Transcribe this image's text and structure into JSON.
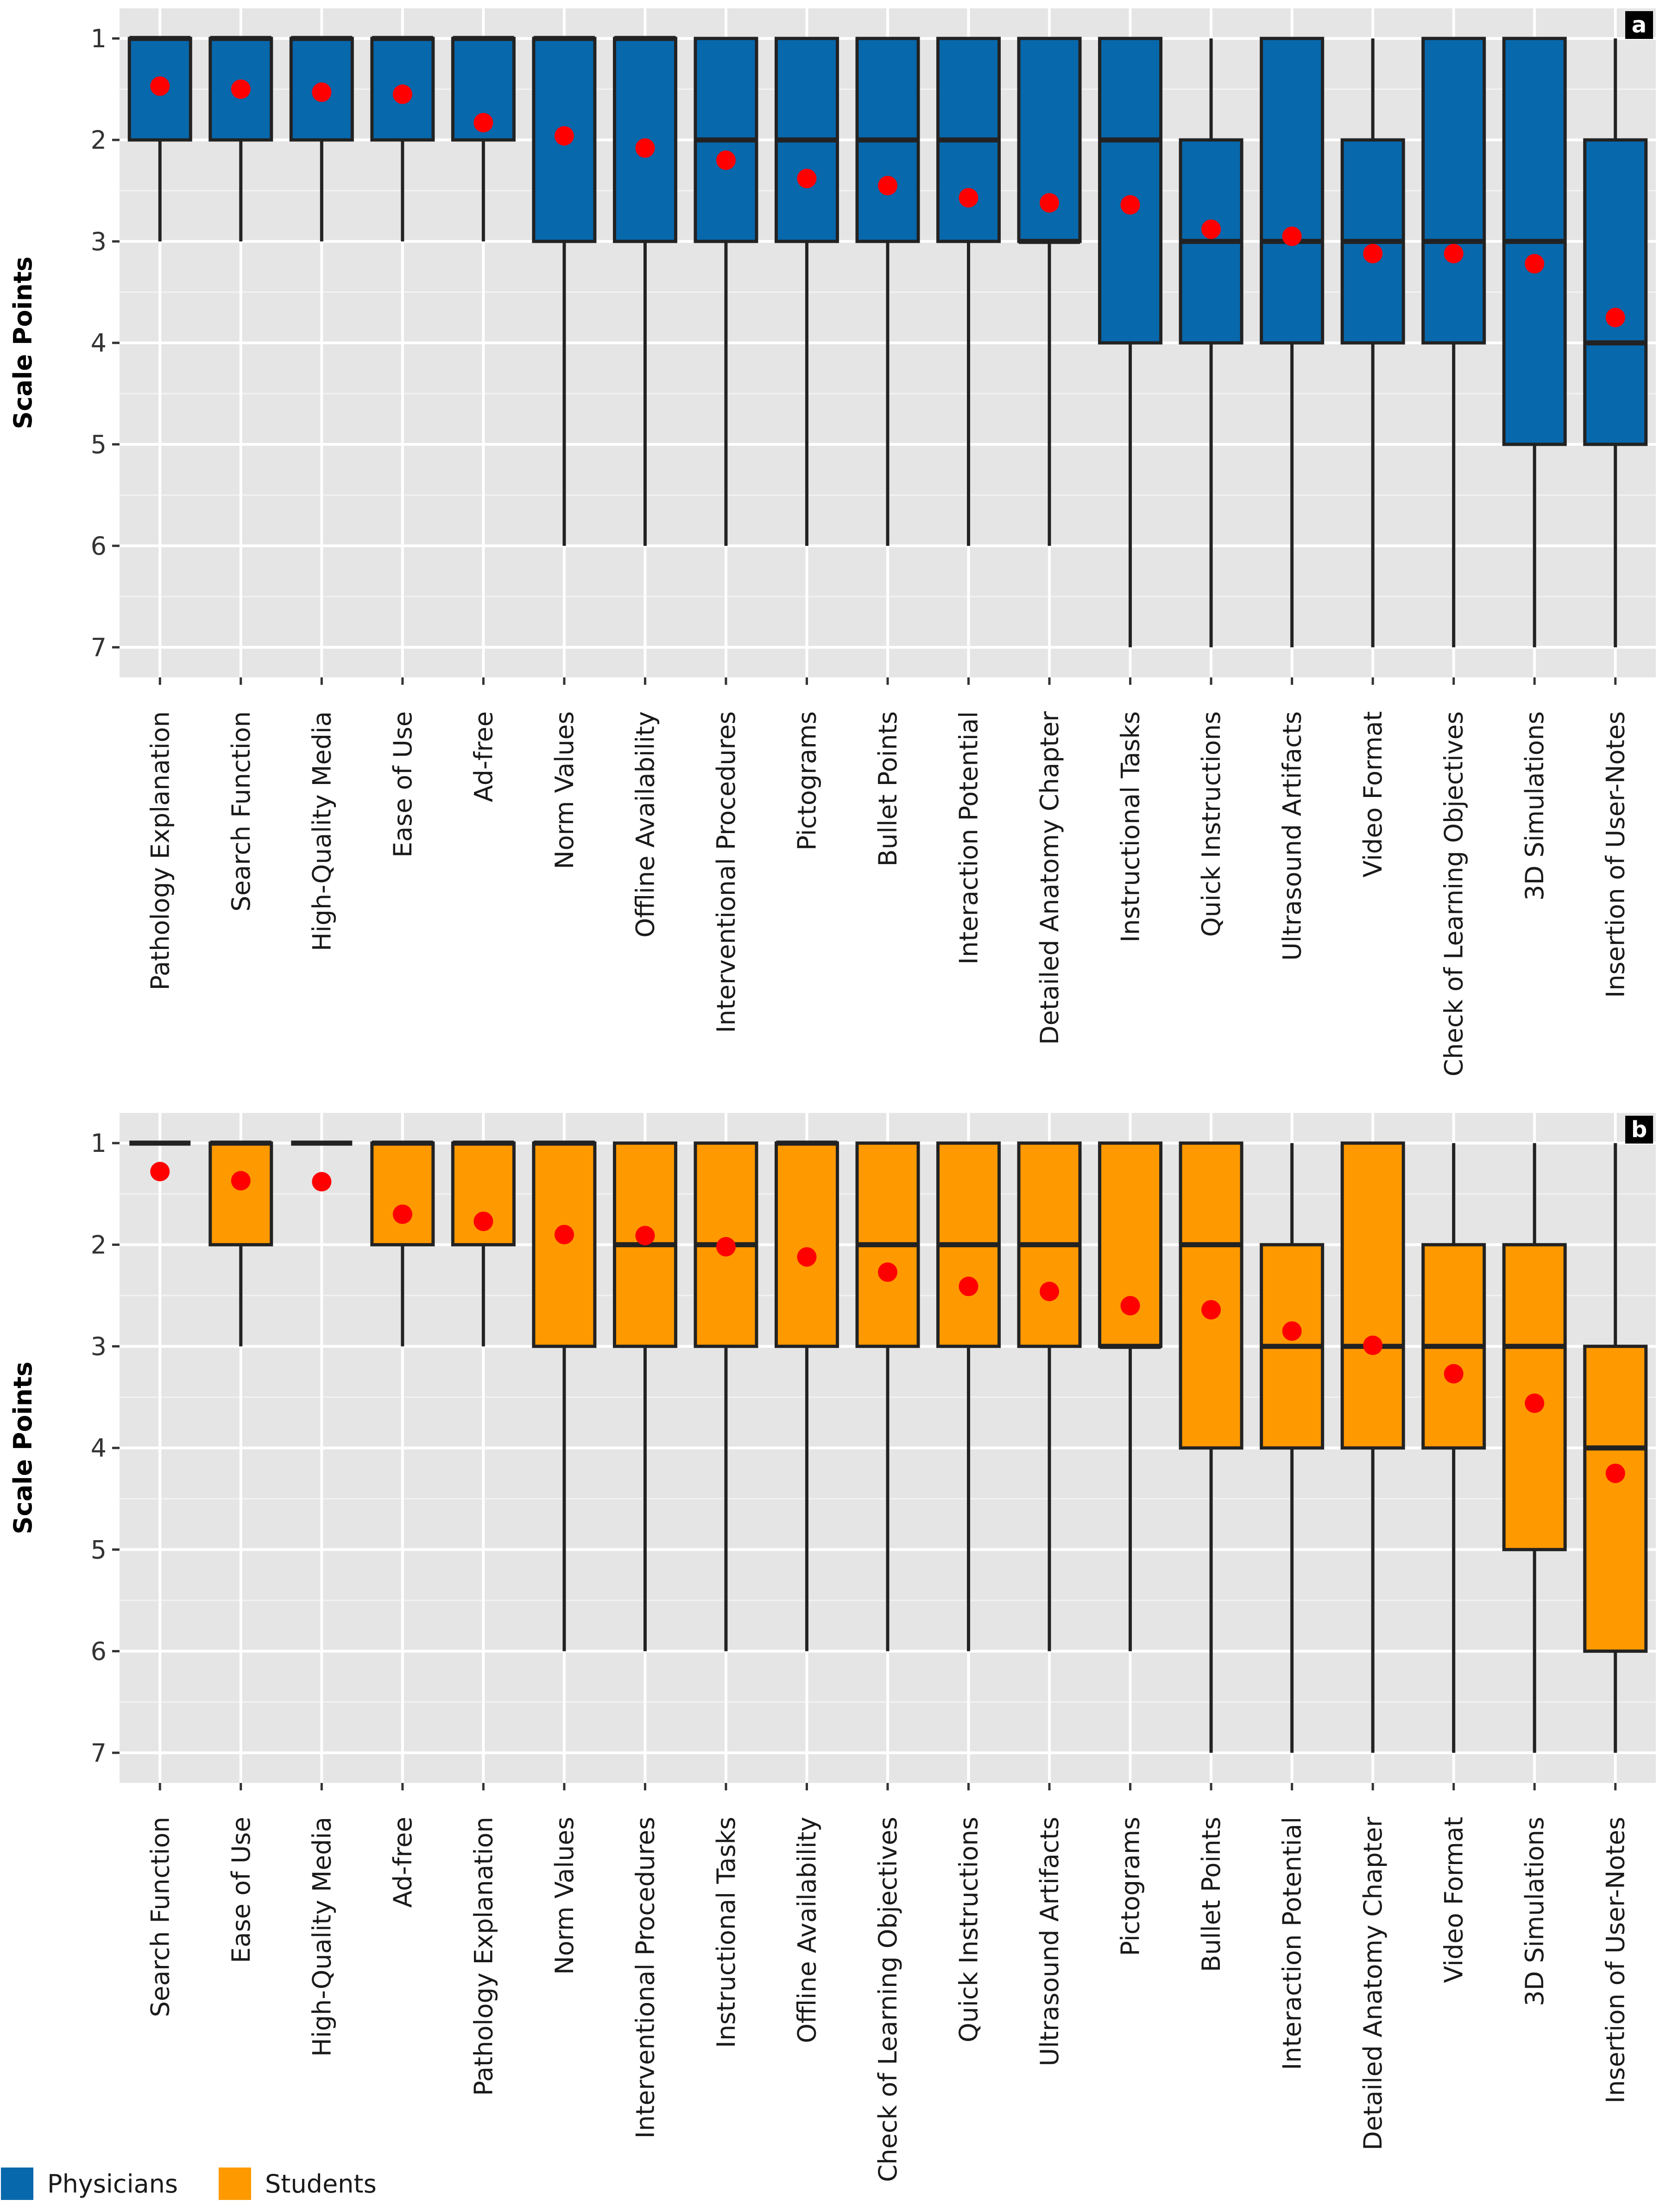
{
  "legend": [
    {
      "name": "Physicians",
      "color": "#0868ac"
    },
    {
      "name": "Students",
      "color": "#ff9900"
    }
  ],
  "chart_data": [
    {
      "type": "box",
      "tag": "a",
      "group": "Physicians",
      "ylabel": "Scale Points",
      "ylim": [
        1,
        7
      ],
      "y_reversed": true,
      "yticks": [
        1,
        2,
        3,
        4,
        5,
        6,
        7
      ],
      "color": "#0868ac",
      "categories": [
        "Pathology Explanation",
        "Search Function",
        "High-Quality Media",
        "Ease of Use",
        "Ad-free",
        "Norm Values",
        "Offline Availability",
        "Interventional Procedures",
        "Pictograms",
        "Bullet Points",
        "Interaction Potential",
        "Detailed Anatomy Chapter",
        "Instructional Tasks",
        "Quick Instructions",
        "Ultrasound Artifacts",
        "Video Format",
        "Check of Learning Objectives",
        "3D Simulations",
        "Insertion of User-Notes"
      ],
      "whisker_low": [
        1,
        1,
        1,
        1,
        1,
        1,
        1,
        1,
        1,
        1,
        1,
        1,
        1,
        1,
        1,
        1,
        1,
        1,
        1
      ],
      "q1": [
        1,
        1,
        1,
        1,
        1,
        1,
        1,
        1,
        1,
        1,
        1,
        1,
        1,
        2,
        1,
        2,
        1,
        1,
        2
      ],
      "median": [
        1,
        1,
        1,
        1,
        1,
        1,
        1,
        2,
        2,
        2,
        2,
        3,
        2,
        3,
        3,
        3,
        3,
        3,
        4
      ],
      "q3": [
        2,
        2,
        2,
        2,
        2,
        3,
        3,
        3,
        3,
        3,
        3,
        3,
        4,
        4,
        4,
        4,
        4,
        5,
        5
      ],
      "whisker_high": [
        3,
        3,
        3,
        3,
        3,
        6,
        6,
        6,
        6,
        6,
        6,
        6,
        7,
        7,
        7,
        7,
        7,
        7,
        7
      ],
      "mean": [
        1.47,
        1.5,
        1.53,
        1.55,
        1.83,
        1.96,
        2.08,
        2.2,
        2.38,
        2.45,
        2.57,
        2.62,
        2.64,
        2.88,
        2.95,
        3.12,
        3.12,
        3.22,
        3.75
      ]
    },
    {
      "type": "box",
      "tag": "b",
      "group": "Students",
      "ylabel": "Scale Points",
      "ylim": [
        1,
        7
      ],
      "y_reversed": true,
      "yticks": [
        1,
        2,
        3,
        4,
        5,
        6,
        7
      ],
      "color": "#ff9900",
      "categories": [
        "Search Function",
        "Ease of Use",
        "High-Quality Media",
        "Ad-free",
        "Pathology Explanation",
        "Norm Values",
        "Interventional Procedures",
        "Instructional Tasks",
        "Offline Availability",
        "Check of Learning Objectives",
        "Quick Instructions",
        "Ultrasound Artifacts",
        "Pictograms",
        "Bullet Points",
        "Interaction Potential",
        "Detailed Anatomy Chapter",
        "Video Format",
        "3D Simulations",
        "Insertion of User-Notes"
      ],
      "whisker_low": [
        1,
        1,
        1,
        1,
        1,
        1,
        1,
        1,
        1,
        1,
        1,
        1,
        1,
        1,
        1,
        1,
        1,
        1,
        1
      ],
      "q1": [
        1,
        1,
        1,
        1,
        1,
        1,
        1,
        1,
        1,
        1,
        1,
        1,
        1,
        1,
        2,
        1,
        2,
        2,
        3
      ],
      "median": [
        1,
        1,
        1,
        1,
        1,
        1,
        2,
        2,
        1,
        2,
        2,
        2,
        3,
        2,
        3,
        3,
        3,
        3,
        4
      ],
      "q3": [
        1,
        2,
        1,
        2,
        2,
        3,
        3,
        3,
        3,
        3,
        3,
        3,
        3,
        4,
        4,
        4,
        4,
        5,
        6
      ],
      "whisker_high": [
        1,
        3,
        1,
        3,
        3,
        6,
        6,
        6,
        6,
        6,
        6,
        6,
        6,
        7,
        7,
        7,
        7,
        7,
        7
      ],
      "mean": [
        1.28,
        1.37,
        1.38,
        1.7,
        1.77,
        1.9,
        1.91,
        2.02,
        2.12,
        2.27,
        2.41,
        2.46,
        2.6,
        2.64,
        2.85,
        2.99,
        3.27,
        3.56,
        4.25
      ]
    }
  ]
}
